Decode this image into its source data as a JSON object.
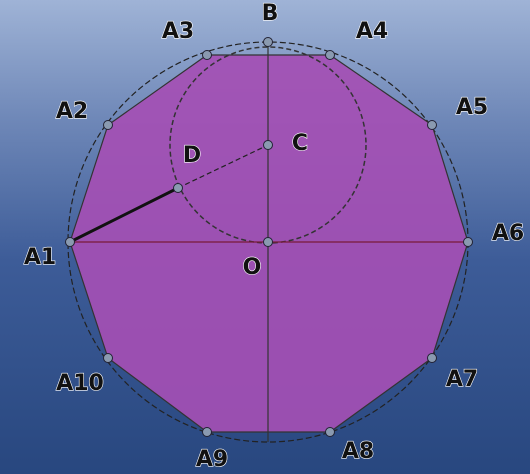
{
  "points": [
    {
      "label": "A1"
    },
    {
      "label": "A2"
    },
    {
      "label": "A3"
    },
    {
      "label": "A4"
    },
    {
      "label": "A5"
    },
    {
      "label": "A6"
    },
    {
      "label": "A7"
    },
    {
      "label": "A8"
    },
    {
      "label": "A9"
    },
    {
      "label": "A10"
    },
    {
      "label": "B"
    },
    {
      "label": "C"
    },
    {
      "label": "D"
    },
    {
      "label": "O"
    }
  ]
}
